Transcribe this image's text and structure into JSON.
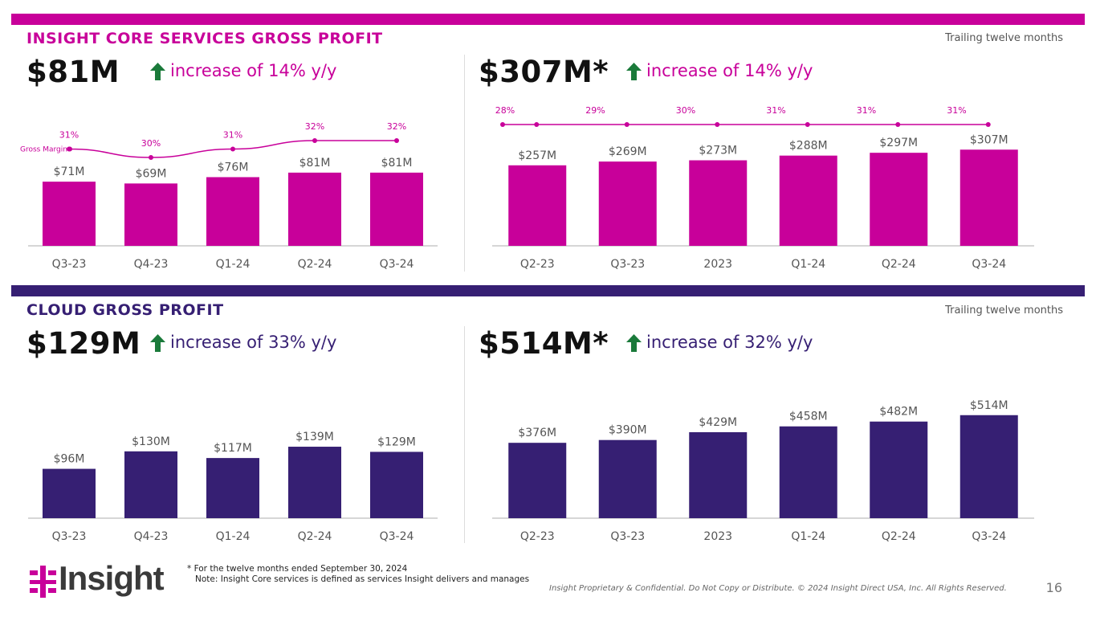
{
  "colors": {
    "core": "#c8009a",
    "cloud": "#361f73",
    "arrow": "#1a7a3a"
  },
  "core": {
    "title": "INSIGHT CORE SERVICES GROSS PROFIT",
    "ttm_label": "Trailing twelve months",
    "quarter_value": "$81M",
    "quarter_increase": "increase of 14% y/y",
    "ttm_value": "$307M*",
    "ttm_increase": "increase of 14% y/y"
  },
  "cloud": {
    "title": "CLOUD GROSS PROFIT",
    "ttm_label": "Trailing twelve months",
    "quarter_value": "$129M",
    "quarter_increase": "increase of 33% y/y",
    "ttm_value": "$514M*",
    "ttm_increase": "increase of 32% y/y"
  },
  "chart_data": [
    {
      "id": "core-quarterly",
      "type": "bar",
      "categories": [
        "Q3-23",
        "Q4-23",
        "Q1-24",
        "Q2-24",
        "Q3-24"
      ],
      "values": [
        71,
        69,
        76,
        81,
        81
      ],
      "value_labels": [
        "$71M",
        "$69M",
        "$76M",
        "$81M",
        "$81M"
      ],
      "margin_series": {
        "name": "Gross Margin",
        "values": [
          31,
          30,
          31,
          32,
          32
        ],
        "labels": [
          "31%",
          "30%",
          "31%",
          "32%",
          "32%"
        ]
      },
      "color": "#c8009a"
    },
    {
      "id": "core-ttm",
      "type": "bar",
      "categories": [
        "Q2-23",
        "Q3-23",
        "2023",
        "Q1-24",
        "Q2-24",
        "Q3-24"
      ],
      "values": [
        257,
        269,
        273,
        288,
        297,
        307
      ],
      "value_labels": [
        "$257M",
        "$269M",
        "$273M",
        "$288M",
        "$297M",
        "$307M"
      ],
      "margin_series": {
        "name": "",
        "values": [
          28,
          29,
          30,
          31,
          31,
          31
        ],
        "labels": [
          "28%",
          "29%",
          "30%",
          "31%",
          "31%",
          "31%"
        ]
      },
      "color": "#c8009a"
    },
    {
      "id": "cloud-quarterly",
      "type": "bar",
      "categories": [
        "Q3-23",
        "Q4-23",
        "Q1-24",
        "Q2-24",
        "Q3-24"
      ],
      "values": [
        96,
        130,
        117,
        139,
        129
      ],
      "value_labels": [
        "$96M",
        "$130M",
        "$117M",
        "$139M",
        "$129M"
      ],
      "color": "#361f73"
    },
    {
      "id": "cloud-ttm",
      "type": "bar",
      "categories": [
        "Q2-23",
        "Q3-23",
        "2023",
        "Q1-24",
        "Q2-24",
        "Q3-24"
      ],
      "values": [
        376,
        390,
        429,
        458,
        482,
        514
      ],
      "value_labels": [
        "$376M",
        "$390M",
        "$429M",
        "$458M",
        "$482M",
        "$514M"
      ],
      "color": "#361f73"
    }
  ],
  "footer": {
    "footnote": "* For the twelve months ended September 30, 2024\n   Note: Insight Core services is defined as services Insight delivers and manages",
    "confidential": "Insight Proprietary & Confidential. Do Not Copy or Distribute. © 2024 Insight Direct USA, Inc. All Rights Reserved.",
    "page_number": "16",
    "logo_text": "Insight"
  }
}
